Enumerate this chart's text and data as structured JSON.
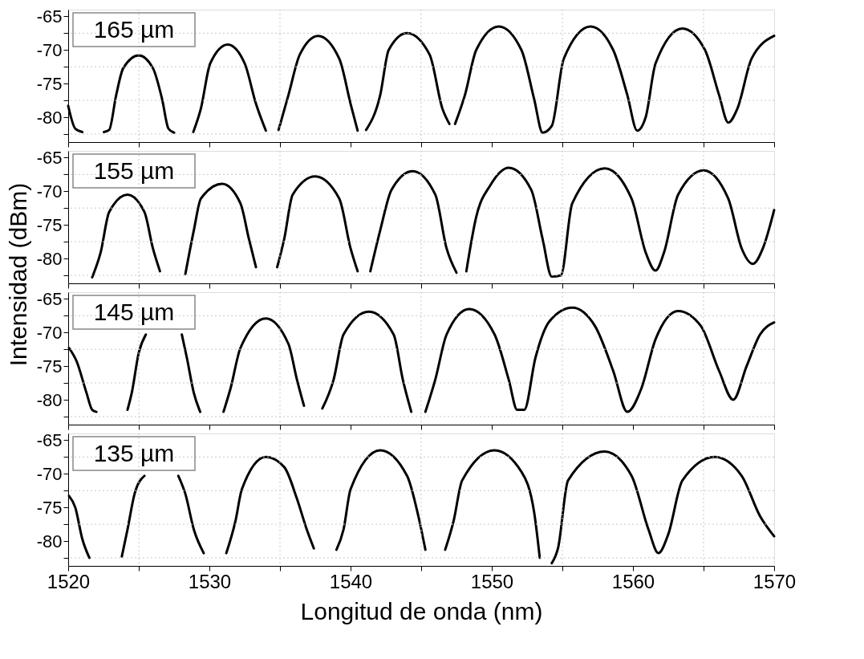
{
  "chart_data": [
    {
      "type": "line",
      "color": "#000000",
      "line_style": "solid",
      "annotations": [
        "165 µm"
      ],
      "tick_labels": "y",
      "grid": true,
      "xlim": [
        1520,
        1570
      ],
      "ylim": [
        -83.7,
        -64
      ],
      "xticks": [
        1520,
        {
          "value": 1525,
          "label": null
        },
        1530,
        {
          "value": 1535,
          "label": null
        },
        1540,
        {
          "value": 1545,
          "label": null
        },
        1550,
        {
          "value": 1555,
          "label": null
        },
        1560,
        {
          "value": 1565,
          "label": null
        },
        1570
      ],
      "yticks": [
        -65,
        {
          "value": -67.5,
          "label": null
        },
        -70,
        {
          "value": -72.5,
          "label": null
        },
        -75,
        {
          "value": -77.5,
          "label": null
        },
        -80,
        {
          "value": -82.5,
          "label": null
        }
      ],
      "x": [
        1520,
        1520.5,
        1521,
        1521.8,
        1522.53,
        1522.9,
        1523.4,
        1523.9,
        1525.0,
        1526.0,
        1526.65,
        1527.1,
        1527.5,
        1528.2,
        1528.86,
        1529.4,
        1530.06,
        1531.3,
        1532.5,
        1533.3,
        1534.0,
        1534.45,
        1534.9,
        1535.6,
        1536.4,
        1537.7,
        1539.2,
        1540.0,
        1540.5,
        1540.8,
        1541.1,
        1542.1,
        1542.7,
        1544.0,
        1545.6,
        1546.5,
        1547.0,
        1547.2,
        1547.4,
        1548.1,
        1548.9,
        1550.5,
        1552.1,
        1553.0,
        1553.6,
        1554.25,
        1555.1,
        1557.0,
        1558.6,
        1559.6,
        1560.3,
        1560.9,
        1561.6,
        1563.5,
        1565.1,
        1566.1,
        1566.75,
        1567.4,
        1568.4,
        1570
      ],
      "values": [
        -78.3,
        -81.7,
        -82.2,
        null,
        -82.2,
        -81.9,
        -76.7,
        -72.7,
        -70.8,
        -72.7,
        -77.3,
        -81.7,
        -82.3,
        null,
        -82.2,
        -78.7,
        -72,
        -69.2,
        -72,
        -78,
        -82,
        null,
        -81.9,
        -76.7,
        -70.7,
        -67.9,
        -71.3,
        -78,
        -82,
        null,
        -81.9,
        -76.7,
        -70,
        -67.5,
        -70.7,
        -78.7,
        -81,
        null,
        -81,
        -76.7,
        -70,
        -66.5,
        -70,
        -77.3,
        -82.3,
        -81.3,
        -71.3,
        -66.5,
        -70,
        -76.7,
        -82,
        -80,
        -72,
        -66.8,
        -70,
        -76.7,
        -80.8,
        -78.7,
        -71.3,
        -67.9
      ]
    },
    {
      "type": "line",
      "color": "#000000",
      "line_style": "solid",
      "annotations": [
        "155 µm"
      ],
      "tick_labels": "y",
      "grid": true,
      "ylabel": "Intensidad  (dBm)",
      "xlim": [
        1520,
        1570
      ],
      "ylim": [
        -83.7,
        -64
      ],
      "xticks": [
        1520,
        {
          "value": 1525,
          "label": null
        },
        1530,
        {
          "value": 1535,
          "label": null
        },
        1540,
        {
          "value": 1545,
          "label": null
        },
        1550,
        {
          "value": 1555,
          "label": null
        },
        1560,
        {
          "value": 1565,
          "label": null
        },
        1570
      ],
      "yticks": [
        -65,
        {
          "value": -67.5,
          "label": null
        },
        -70,
        {
          "value": -72.5,
          "label": null
        },
        -75,
        {
          "value": -77.5,
          "label": null
        },
        -80,
        {
          "value": -82.5,
          "label": null
        }
      ],
      "x": [
        1521.7,
        1522.3,
        1522.9,
        1524.2,
        1525.4,
        1526.0,
        1526.5,
        1527.4,
        1528.3,
        1528.9,
        1529.4,
        1530.9,
        1532.2,
        1532.8,
        1533.3,
        1534.0,
        1534.8,
        1535.3,
        1535.9,
        1537.5,
        1539.2,
        1540.0,
        1540.5,
        1540.9,
        1541.4,
        1542.1,
        1542.9,
        1544.4,
        1546.0,
        1546.8,
        1547.5,
        1547.85,
        1548.2,
        1548.9,
        1549.9,
        1551.2,
        1552.8,
        1553.6,
        1554.25,
        1554.9,
        1555.7,
        1558.0,
        1559.9,
        1560.9,
        1561.6,
        1562.2,
        1563.2,
        1565.0,
        1566.75,
        1567.7,
        1568.5,
        1569.2,
        1570
      ],
      "values": [
        -82.8,
        -79.1,
        -73.1,
        -70.5,
        -73.1,
        -78.5,
        -81.9,
        null,
        -82.3,
        -75.8,
        -71.1,
        -68.9,
        -71.8,
        -77.1,
        -81.3,
        null,
        -81.3,
        -77.1,
        -70.5,
        -67.8,
        -71.1,
        -78.5,
        -81.9,
        null,
        -81.9,
        -75.8,
        -69.8,
        -67,
        -70.5,
        -78.5,
        -82.1,
        null,
        -81.9,
        -73.8,
        -69.1,
        -66.5,
        -69.8,
        -77.1,
        -82.7,
        -82.5,
        -71.8,
        -66.6,
        -71.1,
        -79.1,
        -81.8,
        -79.1,
        -70.5,
        -66.9,
        -71.1,
        -78.5,
        -80.8,
        -78.5,
        -72.8
      ]
    },
    {
      "type": "line",
      "color": "#000000",
      "line_style": "solid",
      "annotations": [
        "145 µm"
      ],
      "tick_labels": "y",
      "grid": true,
      "xlim": [
        1520,
        1570
      ],
      "ylim": [
        -83.7,
        -64
      ],
      "xticks": [
        1520,
        {
          "value": 1525,
          "label": null
        },
        1530,
        {
          "value": 1535,
          "label": null
        },
        1540,
        {
          "value": 1545,
          "label": null
        },
        1550,
        {
          "value": 1555,
          "label": null
        },
        1560,
        {
          "value": 1565,
          "label": null
        },
        1570
      ],
      "yticks": [
        -65,
        {
          "value": -67.5,
          "label": null
        },
        -70,
        {
          "value": -72.5,
          "label": null
        },
        -75,
        {
          "value": -77.5,
          "label": null
        },
        -80,
        {
          "value": -82.5,
          "label": null
        }
      ],
      "x": [
        1520.06,
        1520.6,
        1521.3,
        1521.7,
        1522.0,
        1523.1,
        1524.2,
        1524.5,
        1525.0,
        1525.5,
        1526.8,
        1528.05,
        1528.4,
        1528.9,
        1529.35,
        1530.2,
        1531.0,
        1531.5,
        1532.2,
        1534.0,
        1535.6,
        1536.2,
        1536.7,
        1537.35,
        1538.0,
        1538.8,
        1539.5,
        1541.3,
        1543.05,
        1543.7,
        1544.3,
        1544.8,
        1545.3,
        1546.0,
        1546.8,
        1548.4,
        1550.2,
        1551.2,
        1551.8,
        1552.3,
        1553.1,
        1554.1,
        1555.7,
        1557.3,
        1558.6,
        1559.6,
        1560.6,
        1561.6,
        1563.2,
        1564.8,
        1566.1,
        1567.1,
        1568.05,
        1569.0,
        1570
      ],
      "values": [
        -72.3,
        -74.3,
        -79,
        -81.5,
        -81.8,
        null,
        -81.5,
        -79,
        -73,
        -70.3,
        null,
        -70.3,
        -73.7,
        -79,
        -81.8,
        null,
        -81.8,
        -78.3,
        -72.3,
        -67.9,
        -71.7,
        -77,
        -80.9,
        null,
        -81.3,
        -77,
        -70.3,
        -66.9,
        -70.3,
        -77,
        -81.8,
        null,
        -81.8,
        -77,
        -70.3,
        -66.5,
        -70.3,
        -77,
        -81.5,
        -81.5,
        -73.7,
        -68.3,
        -66.3,
        -69,
        -75.7,
        -81.8,
        -78.3,
        -71,
        -66.8,
        -69,
        -75.7,
        -80,
        -75,
        -70.3,
        -68.5
      ]
    },
    {
      "type": "line",
      "color": "#000000",
      "line_style": "solid",
      "annotations": [
        "135 µm"
      ],
      "grid": true,
      "xlabel": "Longitud de onda (nm)",
      "xlim": [
        1520,
        1570
      ],
      "ylim": [
        -83.7,
        -64
      ],
      "xticks": [
        1520,
        {
          "value": 1525,
          "label": null
        },
        1530,
        {
          "value": 1535,
          "label": null
        },
        1540,
        {
          "value": 1545,
          "label": null
        },
        1550,
        {
          "value": 1555,
          "label": null
        },
        1560,
        {
          "value": 1565,
          "label": null
        },
        1570
      ],
      "yticks": [
        -65,
        {
          "value": -67.5,
          "label": null
        },
        -70,
        {
          "value": -72.5,
          "label": null
        },
        -75,
        {
          "value": -77.5,
          "label": null
        },
        -80,
        {
          "value": -82.5,
          "label": null
        }
      ],
      "x": [
        1520.06,
        1520.5,
        1521.0,
        1521.5,
        1522.6,
        1523.8,
        1524.2,
        1524.7,
        1525.4,
        1526.8,
        1527.8,
        1528.3,
        1528.9,
        1529.6,
        1530.4,
        1531.2,
        1531.85,
        1532.3,
        1534.0,
        1535.3,
        1536.2,
        1536.9,
        1537.4,
        1538.2,
        1539.0,
        1539.5,
        1540.0,
        1542.1,
        1544.0,
        1544.8,
        1545.3,
        1546.0,
        1546.7,
        1547.3,
        1547.9,
        1550.2,
        1552.1,
        1553.0,
        1553.4,
        1553.8,
        1554.25,
        1554.7,
        1555.4,
        1558.0,
        1559.9,
        1561.1,
        1561.8,
        1562.5,
        1563.5,
        1565.8,
        1567.7,
        1569.0,
        1570
      ],
      "values": [
        -73.3,
        -75,
        -79.7,
        -82.5,
        null,
        -82.3,
        -78.3,
        -73,
        -70.3,
        null,
        -70.3,
        -73,
        -78.3,
        -81.8,
        null,
        -81.8,
        -77,
        -72.3,
        -67.5,
        -69,
        -73.7,
        -78.3,
        -81.1,
        null,
        -81.3,
        -78.3,
        -72.3,
        -66.5,
        -70.3,
        -76.3,
        -81.3,
        null,
        -81.3,
        -77,
        -71,
        -66.5,
        -69.7,
        -75.7,
        -82.5,
        null,
        -83.3,
        -81,
        -71,
        -66.7,
        -70.3,
        -78.3,
        -81.8,
        -79,
        -71,
        -67.5,
        -70.3,
        -76.3,
        -79.3
      ]
    }
  ]
}
